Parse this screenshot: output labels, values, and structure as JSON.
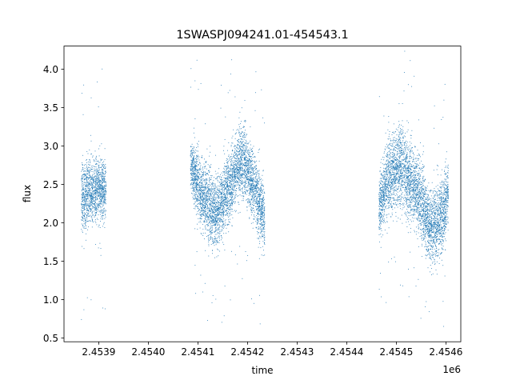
{
  "chart_data": {
    "type": "scatter",
    "title": "1SWASPJ094241.01-454543.1",
    "xlabel": "time",
    "ylabel": "flux",
    "x_offset_label": "1e6",
    "xlim": [
      2.45383,
      2.45463
    ],
    "ylim": [
      0.45,
      4.3
    ],
    "x_ticks": [
      2.4539,
      2.454,
      2.4541,
      2.4542,
      2.4543,
      2.4544,
      2.4545,
      2.4546
    ],
    "x_tick_labels": [
      "2.4539",
      "2.4540",
      "2.4541",
      "2.4542",
      "2.4543",
      "2.4544",
      "2.4545",
      "2.4546"
    ],
    "y_ticks": [
      0.5,
      1.0,
      1.5,
      2.0,
      2.5,
      3.0,
      3.5,
      4.0
    ],
    "y_tick_labels": [
      "0.5",
      "1.0",
      "1.5",
      "2.0",
      "2.5",
      "3.0",
      "3.5",
      "4.0"
    ],
    "grid": false,
    "marker_color": "#1f77b4",
    "segments": [
      {
        "x": [
          2.453865,
          2.453875,
          2.453885,
          2.453895,
          2.453905,
          2.453915
        ],
        "flux": [
          2.3,
          2.35,
          2.4,
          2.45,
          2.45,
          2.4
        ],
        "spread": [
          0.45,
          0.45,
          0.4,
          0.4,
          0.4,
          0.35
        ]
      },
      {
        "x": [
          2.454085,
          2.454095,
          2.454105,
          2.454115,
          2.454125,
          2.454135,
          2.454145,
          2.454155,
          2.454165,
          2.454175,
          2.454185,
          2.454195,
          2.454205,
          2.454215,
          2.454225,
          2.454235
        ],
        "flux": [
          2.75,
          2.6,
          2.4,
          2.3,
          2.2,
          2.15,
          2.2,
          2.35,
          2.5,
          2.65,
          2.8,
          2.8,
          2.6,
          2.45,
          2.2,
          2.05
        ],
        "spread": [
          0.3,
          0.4,
          0.45,
          0.45,
          0.5,
          0.5,
          0.45,
          0.45,
          0.45,
          0.45,
          0.45,
          0.5,
          0.45,
          0.45,
          0.45,
          0.4
        ]
      },
      {
        "x": [
          2.454465,
          2.454475,
          2.454485,
          2.454495,
          2.454505,
          2.454515,
          2.454525,
          2.454535,
          2.454545,
          2.454555,
          2.454565,
          2.454575,
          2.454585,
          2.454595,
          2.454605
        ],
        "flux": [
          2.2,
          2.4,
          2.6,
          2.7,
          2.75,
          2.7,
          2.55,
          2.5,
          2.35,
          2.2,
          2.0,
          1.95,
          2.0,
          2.15,
          2.4
        ],
        "spread": [
          0.4,
          0.45,
          0.5,
          0.55,
          0.55,
          0.55,
          0.5,
          0.5,
          0.5,
          0.5,
          0.5,
          0.5,
          0.5,
          0.45,
          0.45
        ]
      }
    ]
  }
}
